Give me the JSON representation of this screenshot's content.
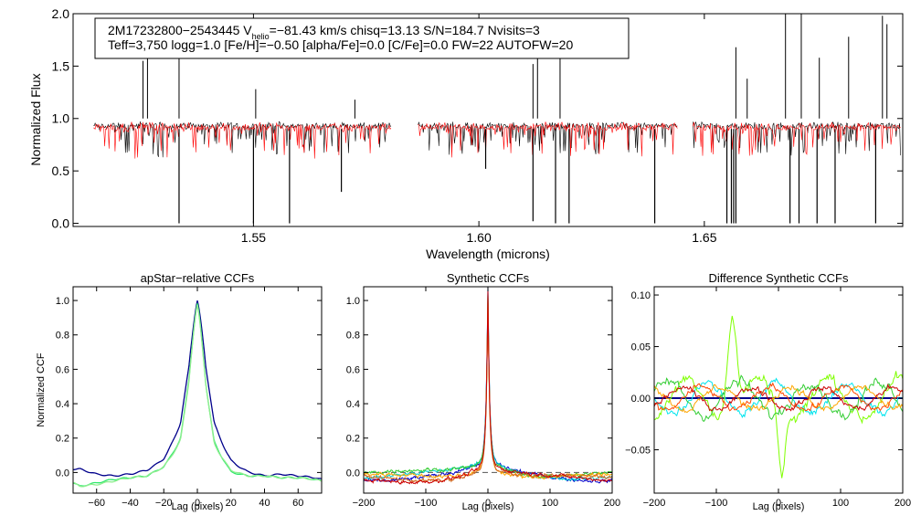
{
  "chart_data": [
    {
      "type": "line",
      "title": "",
      "annotation_lines": [
        "2M17232800−2543445  V",
        "helio",
        "=−81.43 km/s  chisq=13.13  S/N=184.7  Nvisits=3",
        "Teff=3,750 logg=1.0 [Fe/H]=−0.50 [alpha/Fe]=0.0 [C/Fe]=0.0 FW=22 AUTOFW=20"
      ],
      "xlabel": "Wavelength (microns)",
      "ylabel": "Normalized Flux",
      "xlim": [
        1.51,
        1.694
      ],
      "ylim": [
        -0.03,
        2.0
      ],
      "xticks": [
        1.55,
        1.6,
        1.65
      ],
      "xtick_labels": [
        "1.55",
        "1.60",
        "1.65"
      ],
      "yticks": [
        0.0,
        0.5,
        1.0,
        1.5,
        2.0
      ],
      "ytick_labels": [
        "0.0",
        "0.5",
        "1.0",
        "1.5",
        "2.0"
      ],
      "chips": [
        [
          1.5145,
          1.5805
        ],
        [
          1.5865,
          1.644
        ],
        [
          1.6475,
          1.6935
        ]
      ],
      "series": [
        {
          "color": "#000000",
          "role": "observed",
          "continuum": 0.93,
          "noise": 0.05
        },
        {
          "color": "#ff0000",
          "role": "model",
          "continuum": 0.92,
          "noise": 0.06
        }
      ],
      "spikes_up": [
        [
          1.5255,
          1.55
        ],
        [
          1.5265,
          1.78
        ],
        [
          1.5335,
          1.68
        ],
        [
          1.5505,
          1.28
        ],
        [
          1.5725,
          1.18
        ],
        [
          1.612,
          1.52
        ],
        [
          1.613,
          1.8
        ],
        [
          1.618,
          1.6
        ],
        [
          1.657,
          1.68
        ],
        [
          1.6595,
          1.38
        ],
        [
          1.668,
          2.0
        ],
        [
          1.6715,
          2.0
        ],
        [
          1.6755,
          1.58
        ],
        [
          1.682,
          1.78
        ],
        [
          1.6895,
          1.98
        ],
        [
          1.6905,
          1.9
        ]
      ],
      "spikes_down": [
        [
          1.5335,
          0.0
        ],
        [
          1.55,
          0.0
        ],
        [
          1.558,
          0.0
        ],
        [
          1.5695,
          0.3
        ],
        [
          1.6015,
          0.52
        ],
        [
          1.612,
          0.02
        ],
        [
          1.617,
          0.0
        ],
        [
          1.62,
          0.0
        ],
        [
          1.639,
          0.0
        ],
        [
          1.655,
          0.0
        ],
        [
          1.656,
          0.0
        ],
        [
          1.6565,
          0.0
        ],
        [
          1.657,
          0.0
        ],
        [
          1.669,
          0.0
        ],
        [
          1.671,
          0.0
        ],
        [
          1.675,
          0.0
        ],
        [
          1.679,
          0.0
        ],
        [
          1.688,
          0.0
        ]
      ]
    },
    {
      "type": "line",
      "title": "apStar−relative CCFs",
      "xlabel": "Lag (pixels)",
      "ylabel": "Normalized CCF",
      "xlim": [
        -74,
        74
      ],
      "ylim": [
        -0.12,
        1.08
      ],
      "xticks": [
        -60,
        -40,
        -20,
        0,
        20,
        40,
        60
      ],
      "xtick_labels": [
        "−60",
        "−40",
        "−20",
        "0",
        "20",
        "40",
        "60"
      ],
      "yticks": [
        0.0,
        0.2,
        0.4,
        0.6,
        0.8,
        1.0
      ],
      "ytick_labels": [
        "0.0",
        "0.2",
        "0.4",
        "0.6",
        "0.8",
        "1.0"
      ],
      "series": [
        {
          "color": "#00008b",
          "shape": "broad",
          "x": [
            -74,
            -70,
            -60,
            -50,
            -40,
            -30,
            -20,
            -10,
            -5,
            0,
            5,
            10,
            20,
            30,
            40,
            50,
            60,
            70,
            74
          ],
          "y": [
            0.02,
            0.02,
            -0.01,
            -0.02,
            -0.01,
            0.01,
            0.06,
            0.2,
            0.48,
            1.0,
            0.48,
            0.2,
            0.05,
            0.0,
            -0.02,
            -0.01,
            -0.02,
            -0.03,
            -0.04
          ]
        },
        {
          "color": "#2ee86a",
          "shape": "narrow",
          "x": [
            -74,
            -70,
            -60,
            -50,
            -40,
            -30,
            -20,
            -10,
            -5,
            0,
            5,
            10,
            20,
            30,
            40,
            50,
            60,
            70,
            74
          ],
          "y": [
            -0.06,
            -0.08,
            -0.06,
            -0.04,
            -0.03,
            -0.02,
            0.03,
            0.16,
            0.45,
            0.98,
            0.42,
            0.14,
            0.0,
            -0.02,
            -0.02,
            -0.03,
            -0.03,
            -0.04,
            -0.05
          ]
        },
        {
          "color": "#90ee90",
          "shape": "narrow",
          "x": [
            -74,
            -70,
            -60,
            -50,
            -40,
            -30,
            -20,
            -10,
            -5,
            0,
            5,
            10,
            20,
            30,
            40,
            50,
            60,
            70,
            74
          ],
          "y": [
            -0.06,
            -0.08,
            -0.07,
            -0.05,
            -0.03,
            -0.02,
            0.03,
            0.15,
            0.44,
            0.97,
            0.42,
            0.13,
            0.01,
            -0.02,
            -0.02,
            -0.03,
            -0.03,
            -0.04,
            -0.05
          ]
        }
      ]
    },
    {
      "type": "line",
      "title": "Synthetic CCFs",
      "xlabel": "Lag (pixels)",
      "ylabel": "",
      "xlim": [
        -200,
        200
      ],
      "ylim": [
        -0.12,
        1.08
      ],
      "xticks": [
        -200,
        -100,
        0,
        100,
        200
      ],
      "xtick_labels": [
        "−200",
        "−100",
        "0",
        "100",
        "200"
      ],
      "yticks": [
        0.0,
        0.2,
        0.4,
        0.6,
        0.8,
        1.0
      ],
      "ytick_labels": [
        "0.0",
        "0.2",
        "0.4",
        "0.6",
        "0.8",
        "1.0"
      ],
      "baseline": {
        "value": 0.0,
        "color": "#555555",
        "style": "dashed"
      },
      "series": [
        {
          "color": "#0000cd",
          "peak": 1.0,
          "offset": 0.0
        },
        {
          "color": "#00ced1",
          "peak": 0.99,
          "offset": 0.01
        },
        {
          "color": "#32cd32",
          "peak": 0.98,
          "offset": 0.02
        },
        {
          "color": "#ffa500",
          "peak": 0.99,
          "offset": 0.0
        },
        {
          "color": "#d2691e",
          "peak": 1.0,
          "offset": -0.01
        },
        {
          "color": "#cc0000",
          "peak": 1.0,
          "offset": -0.01
        }
      ]
    },
    {
      "type": "line",
      "title": "Difference Synthetic CCFs",
      "xlabel": "Lag (pixels)",
      "ylabel": "",
      "xlim": [
        -200,
        200
      ],
      "ylim": [
        -0.092,
        0.108
      ],
      "xticks": [
        -200,
        -100,
        0,
        100,
        200
      ],
      "xtick_labels": [
        "−200",
        "−100",
        "0",
        "100",
        "200"
      ],
      "yticks": [
        -0.05,
        0.0,
        0.05,
        0.1
      ],
      "ytick_labels": [
        "−0.05",
        "0.00",
        "0.05",
        "0.10"
      ],
      "series": [
        {
          "color": "#00008b",
          "amp": 0.0
        },
        {
          "color": "#00e5ee",
          "amp": 0.025
        },
        {
          "color": "#7fff00",
          "amp": 0.035
        },
        {
          "color": "#32cd32",
          "amp": 0.03
        },
        {
          "color": "#ffa500",
          "amp": 0.02
        },
        {
          "color": "#ff4500",
          "amp": 0.02
        },
        {
          "color": "#cc0000",
          "amp": 0.018
        }
      ]
    }
  ]
}
